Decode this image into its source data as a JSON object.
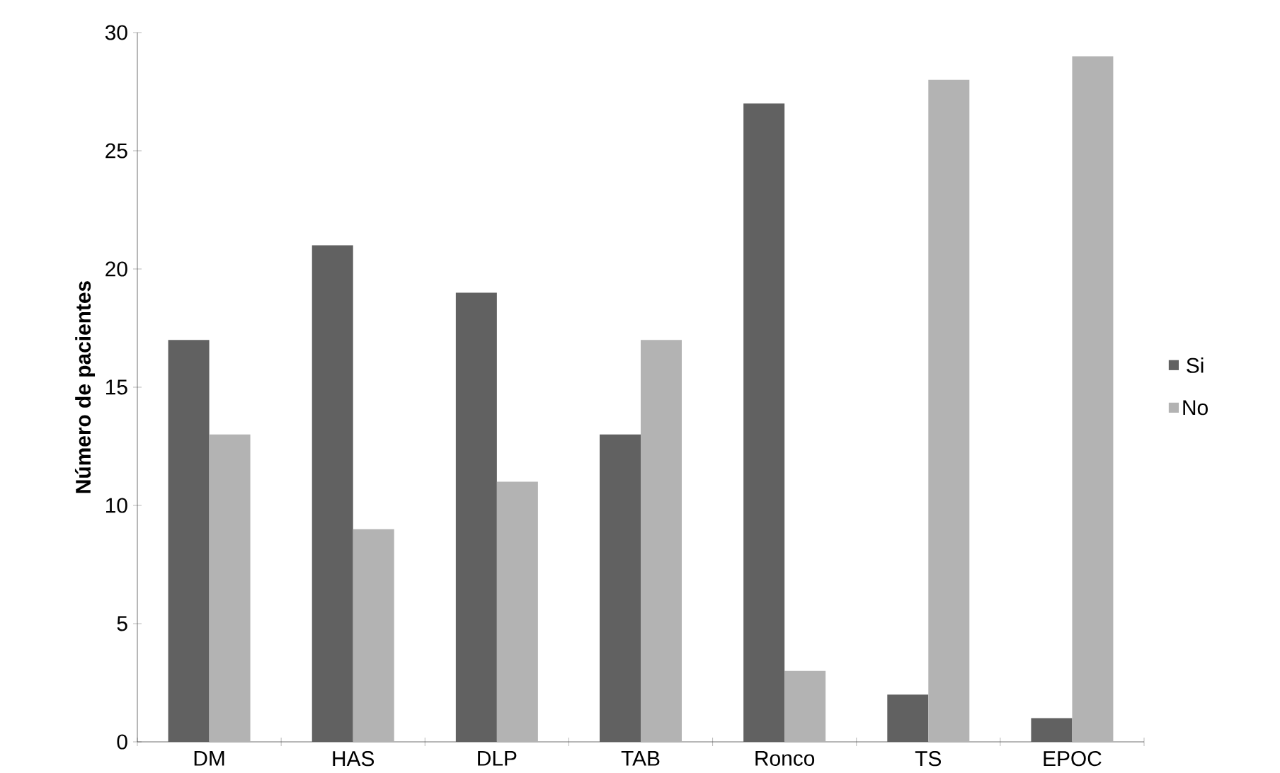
{
  "chart_data": {
    "type": "bar",
    "ylabel": "Número de pacientes",
    "categories": [
      "DM",
      "HAS",
      "DLP",
      "TAB",
      "Ronco",
      "TS",
      "EPOC"
    ],
    "series": [
      {
        "name": "Si",
        "color": "#616161",
        "values": [
          17,
          21,
          19,
          13,
          27,
          2,
          1
        ]
      },
      {
        "name": "No",
        "color": "#b3b3b3",
        "values": [
          13,
          9,
          11,
          17,
          3,
          28,
          29
        ]
      }
    ],
    "ylim": [
      0,
      30
    ],
    "yticks": [
      0,
      5,
      10,
      15,
      20,
      25,
      30
    ],
    "legend": "right"
  }
}
